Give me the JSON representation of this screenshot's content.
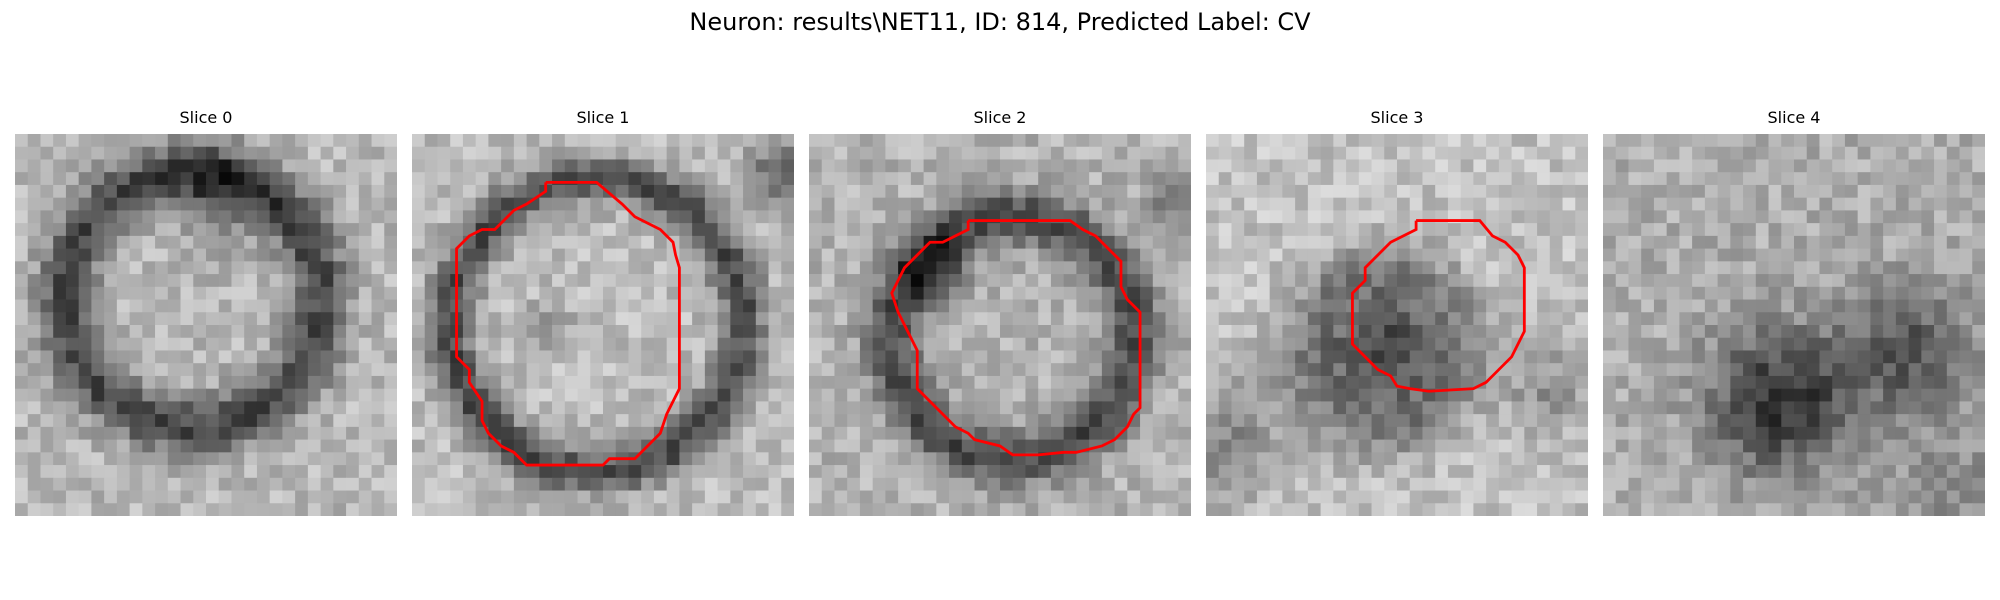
{
  "figure": {
    "title": "Neuron: results\\NET11, ID: 814, Predicted Label: CV",
    "contour_color": "#ff0000",
    "colormap": "gray",
    "image_resolution": "30×30 grayscale"
  },
  "slices": [
    {
      "title": "Slice 0",
      "has_contour": false
    },
    {
      "title": "Slice 1",
      "has_contour": true
    },
    {
      "title": "Slice 2",
      "has_contour": true
    },
    {
      "title": "Slice 3",
      "has_contour": true
    },
    {
      "title": "Slice 4",
      "has_contour": false
    }
  ]
}
